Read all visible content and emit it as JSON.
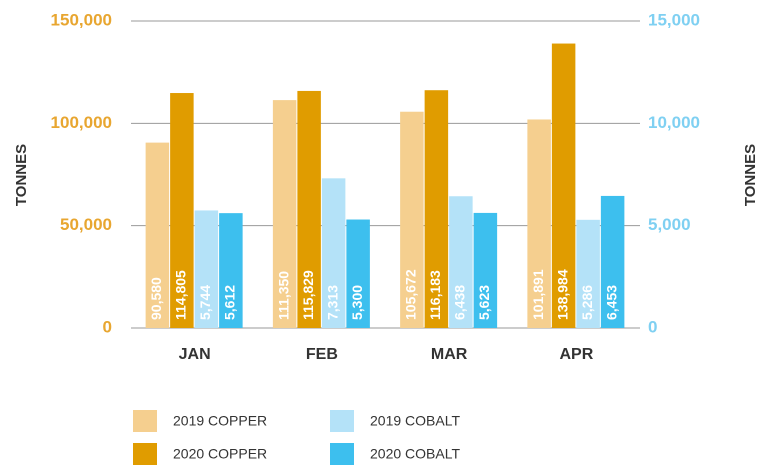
{
  "chart_data": {
    "type": "bar",
    "y_label": "TONNES",
    "y2_label": "TONNES",
    "categories": [
      "JAN",
      "FEB",
      "MAR",
      "APR"
    ],
    "series": [
      {
        "name": "2019 COPPER",
        "color": "#f5cf8f",
        "values": [
          90580,
          111350,
          105672,
          101891
        ],
        "value_labels": [
          "90,580",
          "111,350",
          "105,672",
          "101,891"
        ]
      },
      {
        "name": "2020 COPPER",
        "color": "#e09c00",
        "values": [
          114805,
          115829,
          116183,
          138984
        ],
        "value_labels": [
          "114,805",
          "115,829",
          "116,183",
          "138,984"
        ]
      },
      {
        "name": "2019 COBALT",
        "color": "#b4e2f8",
        "axis": "y2",
        "values": [
          5744,
          7313,
          6438,
          5286
        ],
        "value_labels": [
          "5,744",
          "7,313",
          "6,438",
          "5,286"
        ]
      },
      {
        "name": "2020 COBALT",
        "color": "#3dbfee",
        "axis": "y2",
        "values": [
          5612,
          5300,
          5623,
          6453
        ],
        "value_labels": [
          "5,612",
          "5,300",
          "5,623",
          "6,453"
        ]
      }
    ],
    "ylim": [
      0,
      150000
    ],
    "yticks": [
      0,
      {
        "value": 50000,
        "label": "50,000"
      },
      {
        "value": 100000,
        "label": "100,000"
      },
      {
        "value": 150000,
        "label": "150,000"
      }
    ],
    "y2lim": [
      0,
      15000
    ],
    "y2ticks": [
      0,
      {
        "value": 5000,
        "label": "5,000"
      },
      {
        "value": 10000,
        "label": "10,000"
      },
      {
        "value": 15000,
        "label": "15,000"
      }
    ],
    "grid": true,
    "legend": "bottom"
  }
}
